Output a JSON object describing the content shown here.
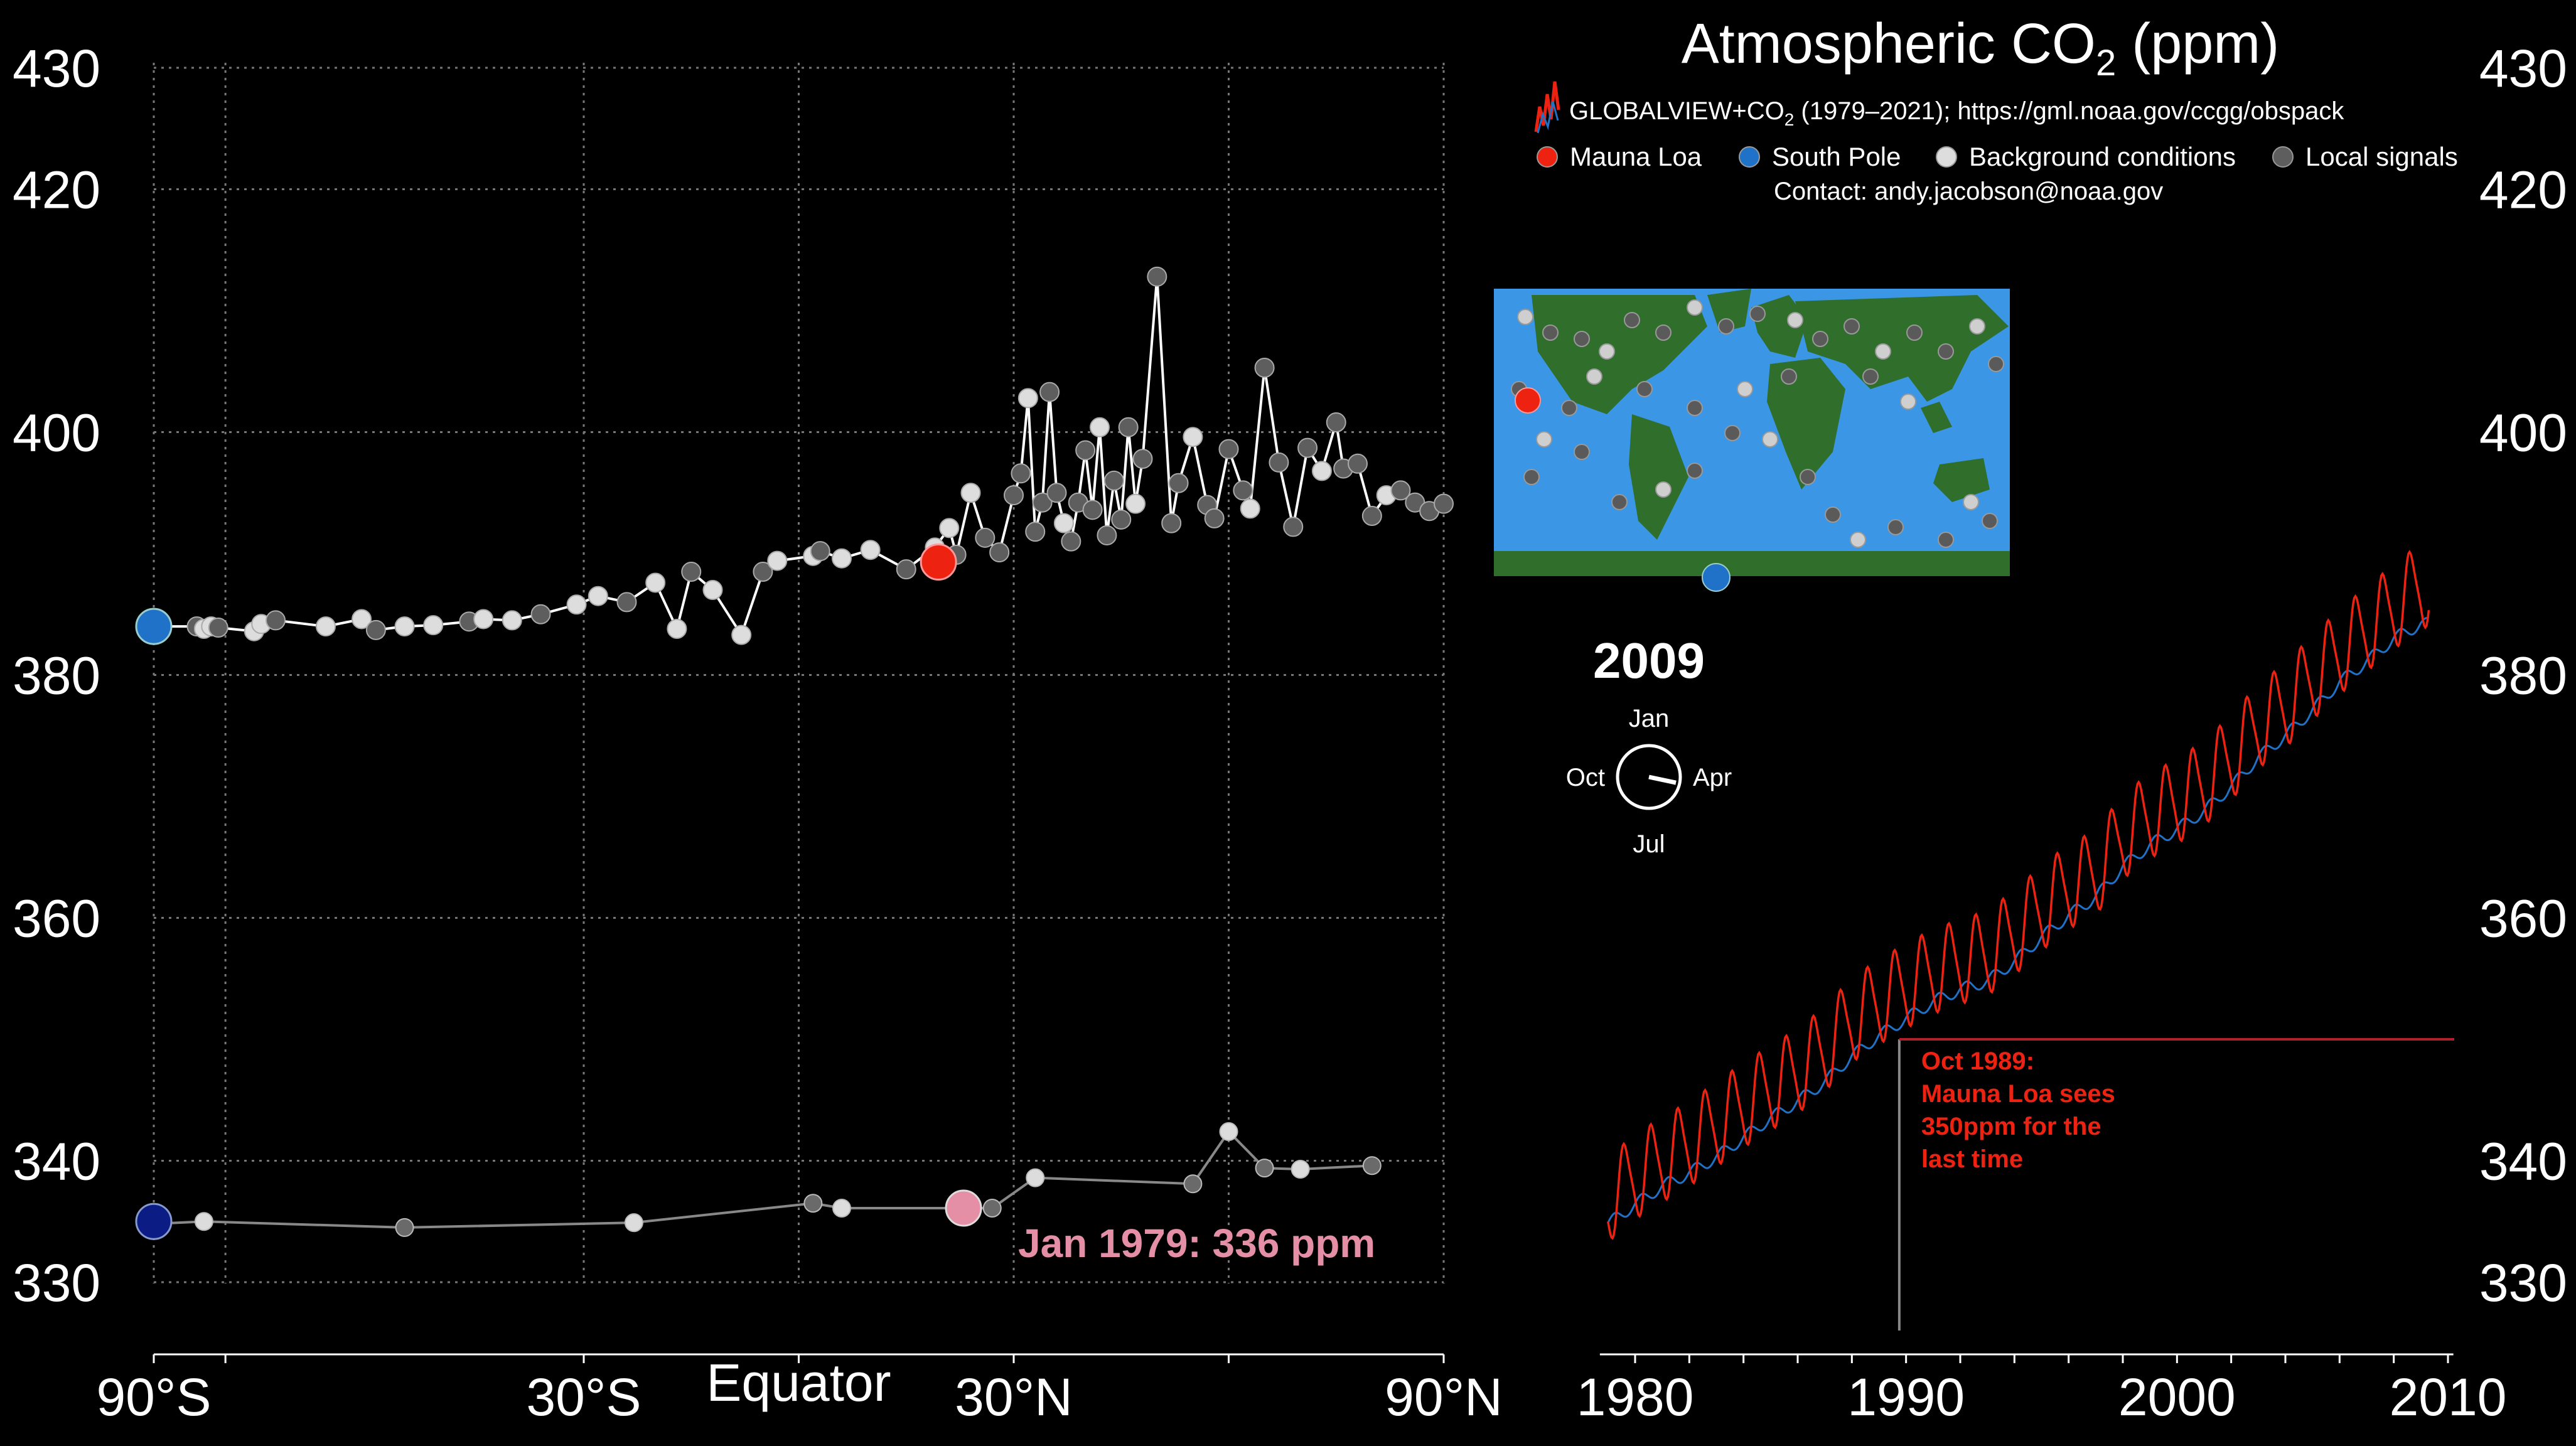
{
  "title": {
    "main": "Atmospheric CO",
    "sub": "2",
    "unit": " (ppm)"
  },
  "source": {
    "pre": "GLOBALVIEW+CO",
    "sub": "2",
    "post": " (1979–2021); https://gml.noaa.gov/ccgg/obspack"
  },
  "legend": {
    "items": [
      {
        "label": "Mauna Loa",
        "color": "#ee2211"
      },
      {
        "label": "South Pole",
        "color": "#1f72c8"
      },
      {
        "label": "Background conditions",
        "color": "#dddddd"
      },
      {
        "label": "Local signals",
        "color": "#5e5e5e"
      }
    ],
    "contact": "Contact: andy.jacobson@noaa.gov"
  },
  "year_label": "2009",
  "clock": {
    "top": "Jan",
    "right": "Apr",
    "bottom": "Jul",
    "left": "Oct",
    "hand_month": 3.4
  },
  "annotation_1979": "Jan 1979: 336 ppm",
  "annotation_1989": [
    "Oct 1989:",
    "Mauna Loa sees",
    "350ppm for the",
    "last time"
  ],
  "colors": {
    "mlo": "#ee2211",
    "spo": "#1f72c8",
    "spo1979": "#0b1d85",
    "mlo1979": "#e58fa6",
    "bg": "#dddddd",
    "local": "#5e5e5e",
    "ocean": "#3b97e6",
    "land": "#2f6e2b",
    "ice": "#f4f4f4",
    "annot": "#ee2211"
  },
  "chart_data": [
    {
      "type": "scatter",
      "title": "Atmospheric CO2 (ppm)",
      "xlabel": "",
      "ylabel": "",
      "xlim": [
        -90,
        90
      ],
      "ylim": [
        325,
        432
      ],
      "x_ticks": [
        "90°S",
        "30°S",
        "Equator",
        "30°N",
        "90°N"
      ],
      "y_ticks": [
        330,
        340,
        360,
        380,
        400,
        420,
        430
      ],
      "grid": true,
      "series": [
        {
          "name": "2009",
          "x": [
            -90,
            -84,
            -83,
            -82,
            -81,
            -76,
            -75,
            -73,
            -66,
            -61,
            -59,
            -55,
            -51,
            -46,
            -44,
            -40,
            -36,
            -31,
            -28,
            -24,
            -20,
            -17,
            -15,
            -12,
            -8,
            -5,
            -3,
            2,
            3,
            6,
            10,
            15,
            19,
            21,
            22,
            24,
            26,
            28,
            30,
            31,
            32,
            33,
            34,
            35,
            36,
            37,
            38,
            39,
            40,
            41,
            42,
            43,
            44,
            45,
            46,
            47,
            48,
            50,
            52,
            53,
            55,
            57,
            58,
            60,
            62,
            63,
            65,
            67,
            69,
            71,
            73,
            75,
            76,
            78,
            80,
            82,
            84,
            86,
            88,
            90
          ],
          "y": [
            384,
            384,
            383.8,
            384,
            383.9,
            383.6,
            384.2,
            384.5,
            384,
            384.6,
            383.7,
            384,
            384.1,
            384.4,
            384.6,
            384.5,
            385,
            385.8,
            386.5,
            386,
            387.6,
            383.8,
            388.5,
            387,
            383.3,
            388.5,
            389.4,
            389.8,
            390.2,
            389.6,
            390.3,
            388.7,
            390.5,
            392.1,
            389.9,
            395,
            391.3,
            390.1,
            394.8,
            396.6,
            402.8,
            391.8,
            394.2,
            403.3,
            395,
            392.5,
            391,
            394.2,
            398.5,
            393.6,
            400.4,
            391.5,
            396,
            392.8,
            400.4,
            394.1,
            397.8,
            412.8,
            392.5,
            395.8,
            399.6,
            394,
            392.9,
            398.6,
            395.2,
            393.7,
            405.3,
            397.5,
            392.2,
            398.7,
            396.8,
            400.8,
            397,
            397.4,
            393.1,
            394.8,
            395.2,
            394.2,
            393.5,
            394.1
          ]
        },
        {
          "name": "1979",
          "x": [
            -90,
            -83,
            -55,
            -23,
            2,
            6,
            27,
            33,
            55,
            60,
            65,
            70,
            80
          ],
          "y": [
            334.8,
            335,
            334.5,
            334.9,
            336.5,
            336.1,
            336.1,
            338.6,
            338.1,
            342.4,
            339.4,
            339.3,
            339.6
          ]
        }
      ]
    },
    {
      "type": "line",
      "title": "",
      "xlabel": "",
      "ylabel": "",
      "xlim": [
        1978.7,
        2010
      ],
      "ylim": [
        325,
        432
      ],
      "x_ticks": [
        1980,
        1990,
        2000,
        2010
      ],
      "y_ticks": [
        330,
        340,
        360,
        380,
        400,
        420,
        430
      ],
      "series": [
        {
          "name": "Mauna Loa",
          "x": [
            1979,
            1980,
            1981,
            1982,
            1983,
            1984,
            1985,
            1986,
            1987,
            1988,
            1989,
            1990,
            1991,
            1992,
            1993,
            1994,
            1995,
            1996,
            1997,
            1998,
            1999,
            2000,
            2001,
            2002,
            2003,
            2004,
            2005,
            2006,
            2007,
            2008,
            2009
          ],
          "y": [
            336.8,
            338.7,
            340.1,
            341.4,
            343.0,
            344.6,
            346.0,
            347.4,
            349.2,
            351.6,
            353.1,
            354.4,
            355.6,
            356.4,
            357.1,
            358.8,
            360.8,
            362.6,
            363.7,
            366.7,
            368.4,
            369.6,
            371.1,
            373.2,
            375.8,
            377.5,
            379.8,
            381.9,
            383.8,
            385.6,
            387.4
          ],
          "seasonal_amplitude": 3.3
        },
        {
          "name": "South Pole",
          "x": [
            1979,
            1980,
            1981,
            1982,
            1983,
            1984,
            1985,
            1986,
            1987,
            1988,
            1989,
            1990,
            1991,
            1992,
            1993,
            1994,
            1995,
            1996,
            1997,
            1998,
            1999,
            2000,
            2001,
            2002,
            2003,
            2004,
            2005,
            2006,
            2007,
            2008,
            2009
          ],
          "y": [
            334.8,
            336.4,
            337.9,
            339.0,
            340.3,
            341.9,
            343.5,
            344.9,
            346.5,
            348.6,
            350.3,
            351.7,
            353.1,
            354.1,
            354.8,
            356.4,
            358.4,
            360.2,
            361.7,
            364.2,
            366.0,
            367.3,
            368.8,
            370.8,
            373.2,
            375.0,
            377.1,
            379.4,
            381.1,
            383.0,
            384.2
          ]
        }
      ],
      "marker_1989": {
        "x": 1989.75,
        "y": 350
      }
    }
  ]
}
